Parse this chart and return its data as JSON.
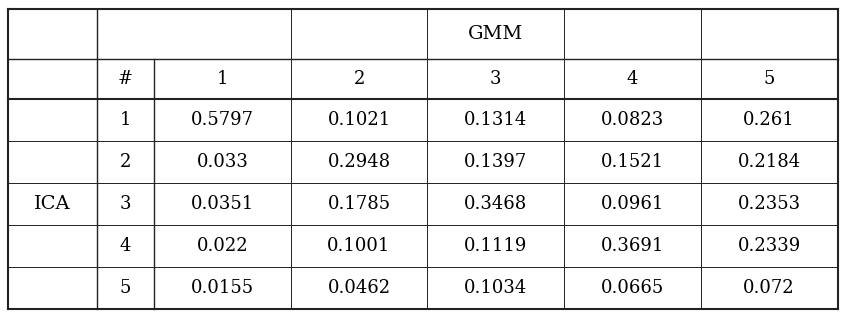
{
  "gmm_label": "GMM",
  "ica_label": "ICA",
  "hash_label": "#",
  "col_headers": [
    "1",
    "2",
    "3",
    "4",
    "5"
  ],
  "row_headers": [
    "1",
    "2",
    "3",
    "4",
    "5"
  ],
  "table_data": [
    [
      "0.5797",
      "0.1021",
      "0.1314",
      "0.0823",
      "0.261"
    ],
    [
      "0.033",
      "0.2948",
      "0.1397",
      "0.1521",
      "0.2184"
    ],
    [
      "0.0351",
      "0.1785",
      "0.3468",
      "0.0961",
      "0.2353"
    ],
    [
      "0.022",
      "0.1001",
      "0.1119",
      "0.3691",
      "0.2339"
    ],
    [
      "0.0155",
      "0.0462",
      "0.1034",
      "0.0665",
      "0.072"
    ]
  ],
  "bg_color": "#ffffff",
  "line_color": "#222222",
  "font_size": 13,
  "header_font_size": 13
}
